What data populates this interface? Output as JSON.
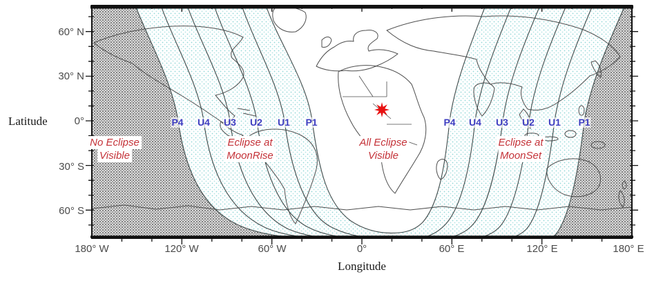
{
  "axes": {
    "ylabel": "Latitude",
    "xlabel": "Longitude",
    "lat_ticks": [
      {
        "label": "60° N"
      },
      {
        "label": "30° N"
      },
      {
        "label": "0°"
      },
      {
        "label": "30° S"
      },
      {
        "label": "60° S"
      }
    ],
    "lon_ticks": [
      {
        "label": "180° W"
      },
      {
        "label": "120° W"
      },
      {
        "label": "60° W"
      },
      {
        "label": "0°"
      },
      {
        "label": "60° E"
      },
      {
        "label": "120° E"
      },
      {
        "label": "180° E"
      }
    ]
  },
  "contour_labels": {
    "left": [
      {
        "label": "P4"
      },
      {
        "label": "U4"
      },
      {
        "label": "U3"
      },
      {
        "label": "U2"
      },
      {
        "label": "U1"
      },
      {
        "label": "P1"
      }
    ],
    "right": [
      {
        "label": "P4"
      },
      {
        "label": "U4"
      },
      {
        "label": "U3"
      },
      {
        "label": "U2"
      },
      {
        "label": "U1"
      },
      {
        "label": "P1"
      }
    ]
  },
  "zone_labels": [
    {
      "line1": "No Eclipse",
      "line2": "Visible"
    },
    {
      "line1": "Eclipse at",
      "line2": "MoonRise"
    },
    {
      "line1": "All Eclipse",
      "line2": "Visible"
    },
    {
      "line1": "Eclipse at",
      "line2": "MoonSet"
    }
  ],
  "marker": {
    "symbol": "red-star"
  },
  "colors": {
    "star": "#e81010",
    "contour_label": "#3d3dc0",
    "zone_label": "#c43238",
    "no_eclipse_fill_dot": "#7a7a7a",
    "no_eclipse_fill_bg": "#dcdcdc",
    "partial_fill_dot": "#8fd6d6",
    "partial_fill_bg": "#ffffff",
    "all_visible_fill": "#ffffff",
    "coastline": "#4d4d4d",
    "contour_line": "#3f4a4a",
    "frame": "#111111"
  }
}
